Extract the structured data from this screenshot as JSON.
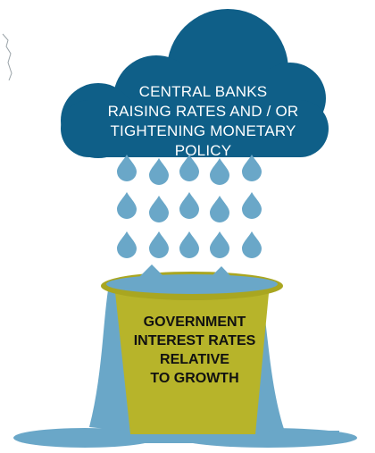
{
  "diagram": {
    "cloud": {
      "lines": [
        "CENTRAL BANKS",
        "RAISING RATES AND / OR",
        "TIGHTENING MONETARY POLICY"
      ],
      "color": "#0f5f88"
    },
    "rain": {
      "drop_color": "#6aa7c8",
      "drop_count": 17
    },
    "bucket": {
      "lines": [
        "GOVERNMENT",
        "INTEREST RATES",
        "RELATIVE",
        "TO GROWTH"
      ],
      "fill_color": "#b7b42a",
      "water_color": "#6aa7c8"
    }
  }
}
